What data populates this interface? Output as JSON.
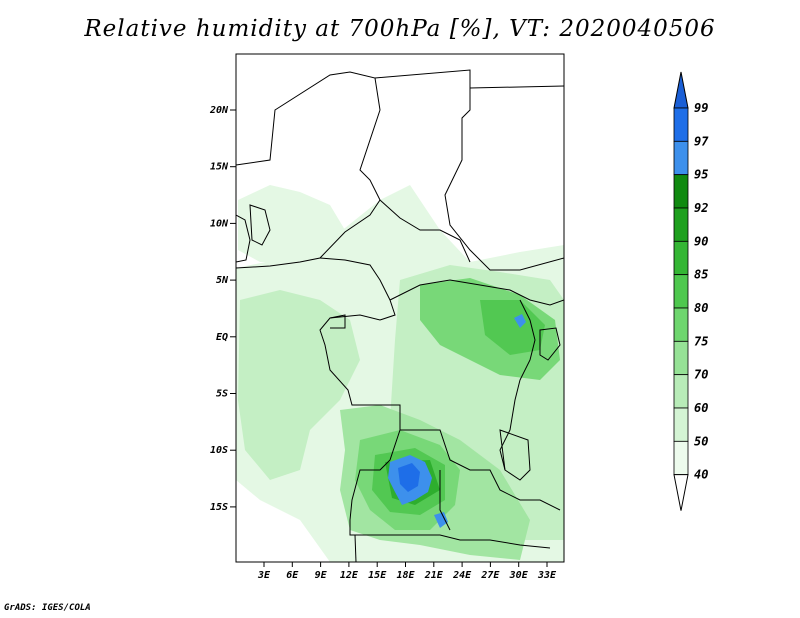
{
  "title": "Relative humidity at 700hPa [%], VT: 2020040506",
  "credit": "GrADS: IGES/COLA",
  "map": {
    "lat_ticks": [
      "20N",
      "15N",
      "10N",
      "5N",
      "EQ",
      "5S",
      "10S",
      "15S"
    ],
    "lon_ticks": [
      "3E",
      "6E",
      "9E",
      "12E",
      "15E",
      "18E",
      "21E",
      "24E",
      "27E",
      "30E",
      "33E"
    ]
  },
  "colorbar": {
    "labels": [
      "99",
      "97",
      "95",
      "92",
      "90",
      "85",
      "80",
      "75",
      "70",
      "60",
      "50",
      "40"
    ],
    "colors": [
      "#1a5fd6",
      "#1e6ee8",
      "#3d90ec",
      "#108a10",
      "#1ea01e",
      "#34b634",
      "#4ec84e",
      "#6ed66e",
      "#96e296",
      "#b8ecb8",
      "#d4f4d4",
      "#edfbed",
      "#ffffff"
    ]
  }
}
